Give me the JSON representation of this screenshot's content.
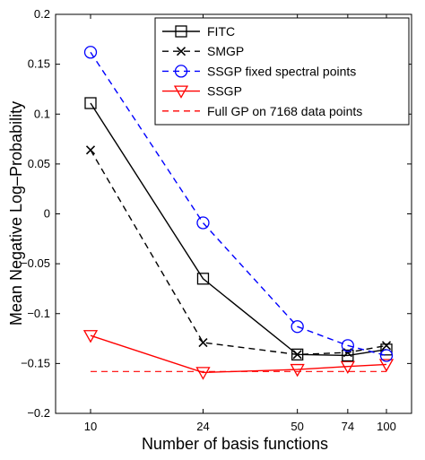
{
  "chart_data": {
    "type": "line",
    "title": "",
    "xlabel": "Number of basis functions",
    "ylabel": "Mean Negative Log–Probability",
    "x": [
      10,
      24,
      50,
      74,
      100
    ],
    "x_tick_labels": [
      "10",
      "24",
      "50",
      "74",
      "100"
    ],
    "x_scale": "log",
    "xlim": [
      10,
      100
    ],
    "ylim": [
      -0.2,
      0.2
    ],
    "y_ticks": [
      0.2,
      0.15,
      0.1,
      0.05,
      0,
      -0.05,
      -0.1,
      -0.15,
      -0.2
    ],
    "y_tick_labels": [
      "0.2",
      "0.15",
      "0.1",
      "0.05",
      "0",
      "−0.05",
      "−0.1",
      "−0.15",
      "−0.2"
    ],
    "grid": false,
    "legend_position": "top-right",
    "series": [
      {
        "name": "FITC",
        "color": "#000000",
        "line_style": "solid",
        "marker": "square",
        "values": [
          0.111,
          -0.065,
          -0.141,
          -0.142,
          -0.136
        ]
      },
      {
        "name": "SMGP",
        "color": "#000000",
        "line_style": "dashed",
        "marker": "x",
        "values": [
          0.064,
          -0.129,
          -0.141,
          -0.139,
          -0.132
        ]
      },
      {
        "name": "SSGP fixed spectral points",
        "color": "#0000ff",
        "line_style": "dashed",
        "marker": "circle",
        "values": [
          0.162,
          -0.009,
          -0.113,
          -0.132,
          -0.142
        ]
      },
      {
        "name": "SSGP",
        "color": "#ff0000",
        "line_style": "solid",
        "marker": "triangle-down",
        "values": [
          -0.122,
          -0.159,
          -0.156,
          -0.153,
          -0.151
        ]
      },
      {
        "name": "Full GP on 7168 data points",
        "color": "#ff0000",
        "line_style": "dashed",
        "marker": "none",
        "values": [
          -0.158,
          -0.158,
          -0.158,
          -0.158,
          -0.158
        ]
      }
    ]
  }
}
